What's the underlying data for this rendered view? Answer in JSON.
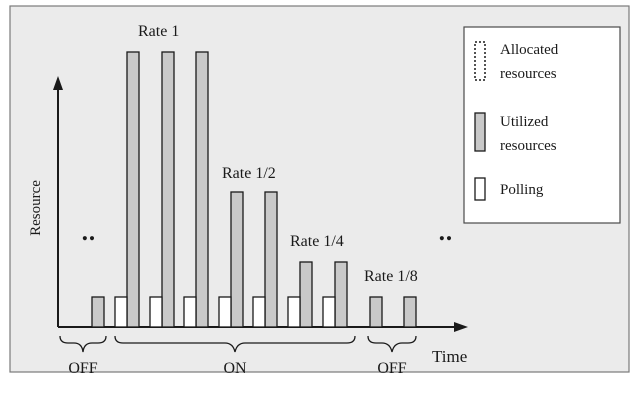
{
  "diagram": {
    "y_axis_label": "Resource",
    "x_axis_label": "Time",
    "rate_labels": [
      "Rate 1",
      "Rate 1/2",
      "Rate 1/4",
      "Rate 1/8"
    ],
    "ellipsis": "‥",
    "phase_labels": {
      "off_left": "OFF",
      "on": "ON",
      "off_right": "OFF"
    },
    "legend": {
      "allocated": [
        "Allocated",
        "resources"
      ],
      "utilized": [
        "Utilized",
        "resources"
      ],
      "polling": "Polling"
    },
    "colors": {
      "background": "#ebebeb",
      "utilized_fill": "#c9c9c9",
      "polling_fill": "#ffffff",
      "stroke": "#1a1a1a"
    }
  }
}
